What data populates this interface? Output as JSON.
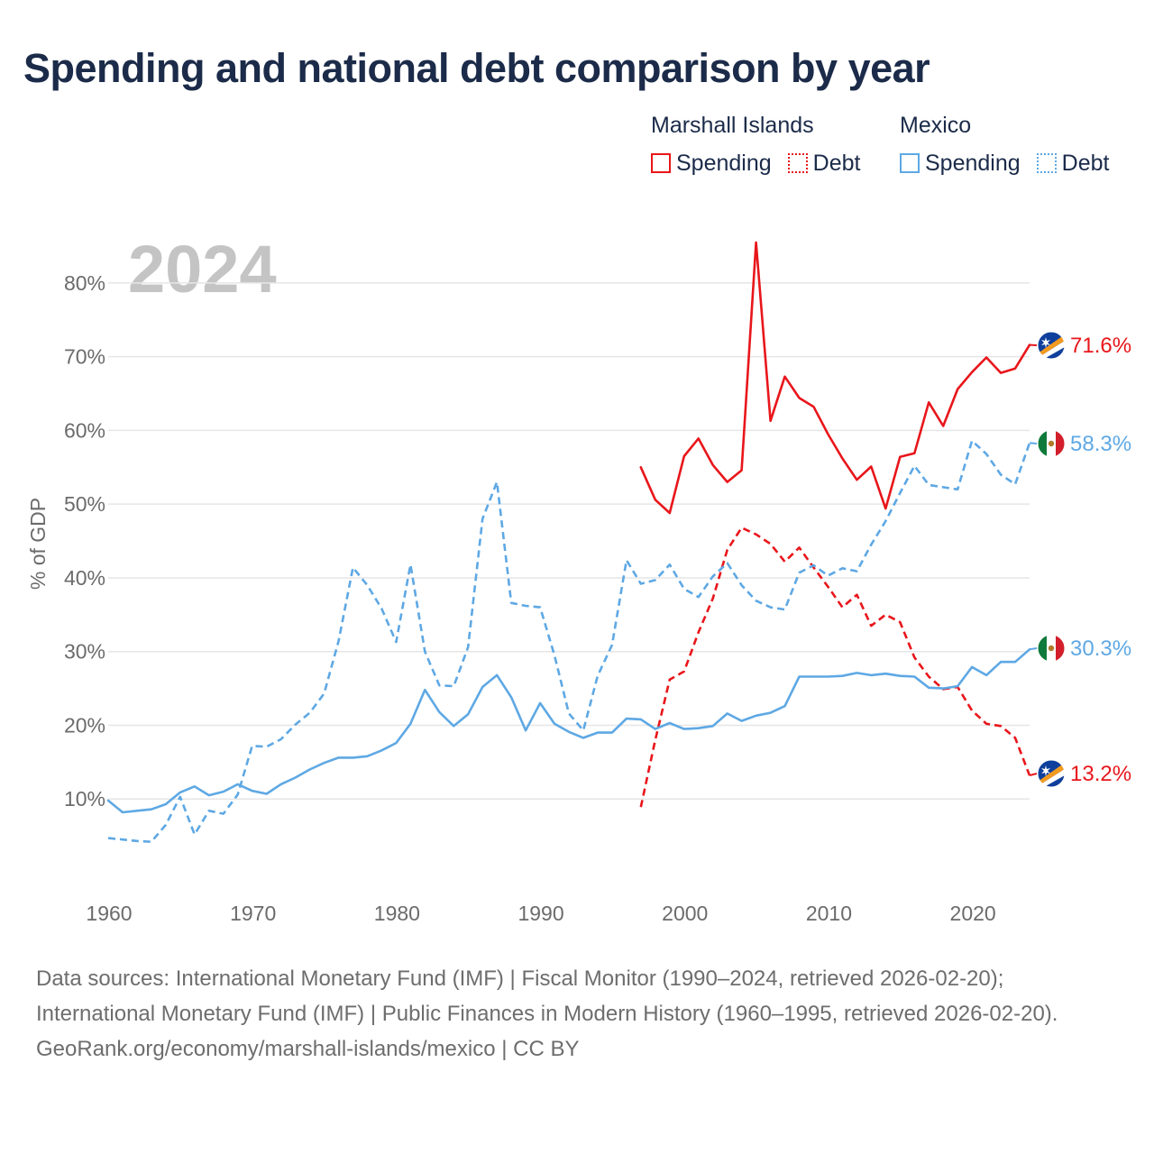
{
  "title": "Spending and national debt comparison by year",
  "legend": {
    "groups": [
      {
        "name": "Marshall Islands",
        "items": [
          {
            "label": "Spending",
            "style": "solid",
            "color": "#e8161b"
          },
          {
            "label": "Debt",
            "style": "dotted",
            "color": "#e8161b"
          }
        ]
      },
      {
        "name": "Mexico",
        "items": [
          {
            "label": "Spending",
            "style": "solid",
            "color": "#5ea8e4"
          },
          {
            "label": "Debt",
            "style": "dotted",
            "color": "#5ea8e4"
          }
        ]
      }
    ]
  },
  "chart_data": {
    "type": "line",
    "title": "Spending and national debt comparison by year",
    "year_watermark": "2024",
    "ylabel": "% of GDP",
    "xlabel": "",
    "xlim": [
      1960,
      2024
    ],
    "ylim": [
      0,
      85
    ],
    "x_ticks": [
      1960,
      1970,
      1980,
      1990,
      2000,
      2010,
      2020
    ],
    "y_ticks": [
      10,
      20,
      30,
      40,
      50,
      60,
      70,
      80
    ],
    "y_tick_labels": [
      "10%",
      "20%",
      "30%",
      "40%",
      "50%",
      "60%",
      "70%",
      "80%"
    ],
    "grid": true,
    "series": [
      {
        "name": "Marshall Islands Spending",
        "color": "#e8161b",
        "dash": "solid",
        "end_label": "71.6%",
        "flag": "marshall-islands",
        "x": [
          1997,
          1998,
          1999,
          2000,
          2001,
          2002,
          2003,
          2004,
          2005,
          2006,
          2007,
          2008,
          2009,
          2010,
          2011,
          2012,
          2013,
          2014,
          2015,
          2016,
          2017,
          2018,
          2019,
          2020,
          2021,
          2022,
          2023,
          2024
        ],
        "values": [
          55.0,
          50.6,
          48.8,
          56.5,
          58.9,
          55.3,
          53.0,
          54.6,
          85.5,
          61.3,
          67.3,
          64.4,
          63.2,
          59.5,
          56.2,
          53.3,
          55.1,
          49.4,
          56.4,
          56.9,
          63.8,
          60.6,
          65.6,
          67.9,
          69.9,
          67.8,
          68.4,
          71.6
        ]
      },
      {
        "name": "Marshall Islands Debt",
        "color": "#e8161b",
        "dash": "dashed",
        "end_label": "13.2%",
        "flag": "marshall-islands",
        "x": [
          1997,
          1998,
          1999,
          2000,
          2001,
          2002,
          2003,
          2004,
          2005,
          2006,
          2007,
          2008,
          2009,
          2010,
          2011,
          2012,
          2013,
          2014,
          2015,
          2016,
          2017,
          2018,
          2019,
          2020,
          2021,
          2022,
          2023,
          2024
        ],
        "values": [
          8.9,
          18.0,
          26.2,
          27.3,
          32.6,
          37.2,
          43.8,
          46.8,
          45.9,
          44.6,
          42.2,
          44.1,
          41.4,
          38.8,
          36.0,
          37.7,
          33.5,
          35.0,
          34.0,
          29.2,
          26.6,
          24.9,
          25.2,
          22.0,
          20.2,
          19.9,
          18.3,
          13.2
        ]
      },
      {
        "name": "Mexico Spending",
        "color": "#5ea8e4",
        "dash": "solid",
        "end_label": "30.3%",
        "flag": "mexico",
        "x": [
          1960,
          1961,
          1962,
          1963,
          1964,
          1965,
          1966,
          1967,
          1968,
          1969,
          1970,
          1971,
          1972,
          1973,
          1974,
          1975,
          1976,
          1977,
          1978,
          1979,
          1980,
          1981,
          1982,
          1983,
          1984,
          1985,
          1986,
          1987,
          1988,
          1989,
          1990,
          1991,
          1992,
          1993,
          1994,
          1995,
          1996,
          1997,
          1998,
          1999,
          2000,
          2001,
          2002,
          2003,
          2004,
          2005,
          2006,
          2007,
          2008,
          2009,
          2010,
          2011,
          2012,
          2013,
          2014,
          2015,
          2016,
          2017,
          2018,
          2019,
          2020,
          2021,
          2022,
          2023,
          2024
        ],
        "values": [
          9.8,
          8.2,
          8.4,
          8.6,
          9.3,
          10.9,
          11.7,
          10.5,
          11.0,
          12.0,
          11.1,
          10.7,
          12.0,
          12.9,
          14.0,
          14.9,
          15.6,
          15.6,
          15.8,
          16.6,
          17.6,
          20.2,
          24.8,
          21.8,
          19.9,
          21.5,
          25.2,
          26.8,
          23.8,
          19.3,
          23.0,
          20.2,
          19.1,
          18.3,
          19.0,
          19.0,
          20.9,
          20.8,
          19.5,
          20.3,
          19.5,
          19.6,
          19.9,
          21.6,
          20.6,
          21.3,
          21.7,
          22.6,
          26.6,
          26.6,
          26.6,
          26.7,
          27.1,
          26.8,
          27.0,
          26.7,
          26.6,
          25.1,
          25.0,
          25.3,
          27.9,
          26.8,
          28.6,
          28.6,
          30.3
        ]
      },
      {
        "name": "Mexico Debt",
        "color": "#5ea8e4",
        "dash": "dashed",
        "end_label": "58.3%",
        "flag": "mexico",
        "x": [
          1960,
          1961,
          1962,
          1963,
          1964,
          1965,
          1966,
          1967,
          1968,
          1969,
          1970,
          1971,
          1972,
          1973,
          1974,
          1975,
          1976,
          1977,
          1978,
          1979,
          1980,
          1981,
          1982,
          1983,
          1984,
          1985,
          1986,
          1987,
          1988,
          1989,
          1990,
          1991,
          1992,
          1993,
          1994,
          1995,
          1996,
          1997,
          1998,
          1999,
          2000,
          2001,
          2002,
          2003,
          2004,
          2005,
          2006,
          2007,
          2008,
          2009,
          2010,
          2011,
          2012,
          2013,
          2014,
          2015,
          2016,
          2017,
          2018,
          2019,
          2020,
          2021,
          2022,
          2023,
          2024
        ],
        "values": [
          4.7,
          4.5,
          4.3,
          4.2,
          6.5,
          10.3,
          5.2,
          8.4,
          8.0,
          10.6,
          17.2,
          17.1,
          18.1,
          20.1,
          21.7,
          24.3,
          31.4,
          41.4,
          39.0,
          35.8,
          31.3,
          41.8,
          30.0,
          25.4,
          25.3,
          30.6,
          48.0,
          53.0,
          36.6,
          36.2,
          36.0,
          29.5,
          21.6,
          19.3,
          26.7,
          30.9,
          42.4,
          39.2,
          39.7,
          41.8,
          38.5,
          37.4,
          40.2,
          42.0,
          39.0,
          36.9,
          36.0,
          35.7,
          40.7,
          41.7,
          40.3,
          41.3,
          40.9,
          44.5,
          47.7,
          51.5,
          55.2,
          52.6,
          52.3,
          52.0,
          58.6,
          56.8,
          54.0,
          52.7,
          58.3
        ]
      }
    ]
  },
  "footer": {
    "sources": "Data sources: International Monetary Fund (IMF) | Fiscal Monitor (1990–2024, retrieved 2026-02-20); International Monetary Fund (IMF) | Public Finances in Modern History (1960–1995, retrieved 2026-02-20).",
    "credit": "GeoRank.org/economy/marshall-islands/mexico | CC BY"
  }
}
